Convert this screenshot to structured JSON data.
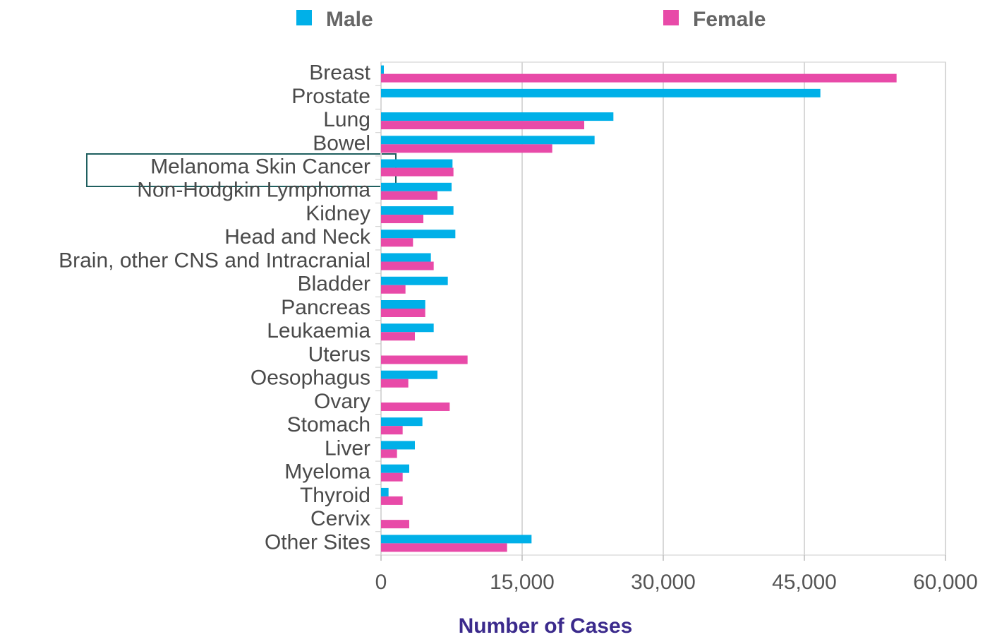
{
  "chart_data": {
    "type": "hbar",
    "x_label": "Number of Cases",
    "categories": [
      "Breast",
      "Prostate",
      "Lung",
      "Bowel",
      "Melanoma Skin Cancer",
      "Non-Hodgkin Lymphoma",
      "Kidney",
      "Head and Neck",
      "Brain, other CNS and Intracranial",
      "Bladder",
      "Pancreas",
      "Leukaemia",
      "Uterus",
      "Oesophagus",
      "Ovary",
      "Stomach",
      "Liver",
      "Myeloma",
      "Thyroid",
      "Cervix",
      "Other Sites"
    ],
    "series": [
      {
        "name": "Male",
        "color": "#00b0e8",
        "values": [
          300,
          46700,
          24700,
          22700,
          7600,
          7500,
          7700,
          7900,
          5300,
          7100,
          4700,
          5600,
          0,
          6000,
          0,
          4400,
          3600,
          3000,
          800,
          0,
          16000
        ]
      },
      {
        "name": "Female",
        "color": "#e84aa8",
        "values": [
          54800,
          0,
          21600,
          18200,
          7700,
          6000,
          4500,
          3400,
          5600,
          2600,
          4700,
          3600,
          9200,
          2900,
          7300,
          2300,
          1700,
          2300,
          2300,
          3000,
          13400
        ]
      }
    ],
    "xlim": [
      0,
      60000
    ],
    "xticks": [
      0,
      {
        "value": 15000,
        "label": "15,000"
      },
      {
        "value": 30000,
        "label": "30,000"
      },
      {
        "value": 45000,
        "label": "45,000"
      },
      {
        "value": 60000,
        "label": "60,000"
      }
    ],
    "grid": true,
    "legend": "top"
  }
}
